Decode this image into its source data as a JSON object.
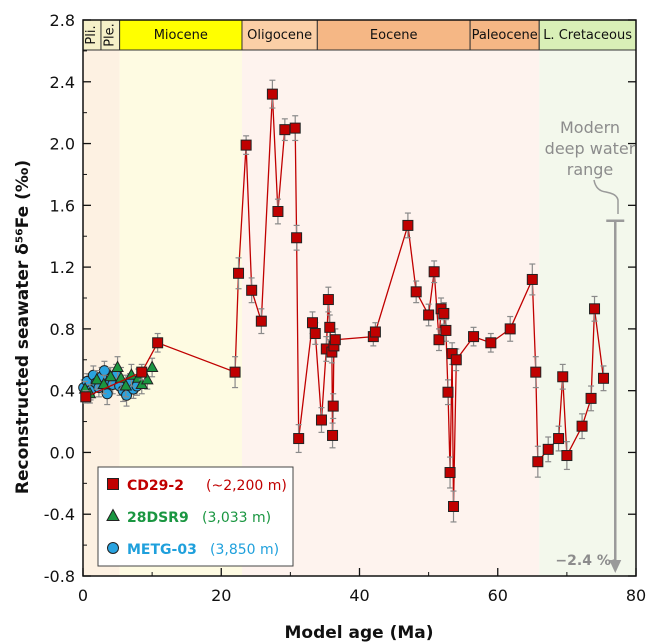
{
  "chart_data": {
    "type": "scatter",
    "xlabel": "Model age (Ma)",
    "ylabel": "Reconstructed seawater δ⁵⁶Fe (‰)",
    "xlim": [
      0,
      80
    ],
    "ylim": [
      -0.8,
      2.8
    ],
    "x_ticks": [
      "0",
      "20",
      "40",
      "60",
      "80"
    ],
    "y_ticks": [
      "-0.8",
      "-0.4",
      "0.0",
      "0.4",
      "0.8",
      "1.2",
      "1.6",
      "2.0",
      "2.4",
      "2.8"
    ],
    "epochs": [
      {
        "label": "Pli.",
        "start": 0,
        "end": 2.6,
        "color": "#f5f0c8"
      },
      {
        "label": "Ple.",
        "start": 2.6,
        "end": 5.3,
        "color": "#f5f0c8"
      },
      {
        "label": "Miocene",
        "start": 5.3,
        "end": 23.0,
        "color": "#ffff00"
      },
      {
        "label": "Oligocene",
        "start": 23.0,
        "end": 33.9,
        "color": "#fbcfa6"
      },
      {
        "label": "Eocene",
        "start": 33.9,
        "end": 56.0,
        "color": "#f5b785"
      },
      {
        "label": "Paleocene",
        "start": 56.0,
        "end": 66.0,
        "color": "#f5b785"
      },
      {
        "label": "L. Cretaceous",
        "start": 66.0,
        "end": 80.0,
        "color": "#d9efb7"
      }
    ],
    "background_bands": [
      {
        "start": 0,
        "end": 5.3,
        "color": "#fdf1e2"
      },
      {
        "start": 5.3,
        "end": 23.0,
        "color": "#fefbe2"
      },
      {
        "start": 23.0,
        "end": 66.0,
        "color": "#fef3ee"
      },
      {
        "start": 66.0,
        "end": 80.0,
        "color": "#f3f8ec"
      }
    ],
    "annotation": {
      "text_lines": [
        "Modern",
        "deep water",
        "range"
      ],
      "range_top": 1.5,
      "range_bottom_label": "−2.4 ‰",
      "x": 77
    },
    "legend_position": "bottom-left",
    "series": [
      {
        "name": "CD29-2",
        "depth_label": "(~2,200 m)",
        "marker": "square",
        "color": "#c00000",
        "label_color": "#c00000",
        "connected": true,
        "points": [
          [
            0.4,
            0.36,
            0.04
          ],
          [
            8.5,
            0.52,
            0.05
          ],
          [
            10.8,
            0.71,
            0.06
          ],
          [
            22,
            0.52,
            0.1
          ],
          [
            22.5,
            1.16,
            0.1
          ],
          [
            23.6,
            1.99,
            0.06
          ],
          [
            24.4,
            1.05,
            0.08
          ],
          [
            25.8,
            0.85,
            0.08
          ],
          [
            27.4,
            2.32,
            0.09
          ],
          [
            28.2,
            1.56,
            0.08
          ],
          [
            29.2,
            2.09,
            0.07
          ],
          [
            30.7,
            2.1,
            0.08
          ],
          [
            30.9,
            1.39,
            0.08
          ],
          [
            31.2,
            0.09,
            0.09
          ],
          [
            33.2,
            0.84,
            0.07
          ],
          [
            33.6,
            0.77,
            0.07
          ],
          [
            34.5,
            0.21,
            0.08
          ],
          [
            35.2,
            0.67,
            0.08
          ],
          [
            35.5,
            0.99,
            0.08
          ],
          [
            35.7,
            0.81,
            0.08
          ],
          [
            36.0,
            0.65,
            0.07
          ],
          [
            36.1,
            0.11,
            0.08
          ],
          [
            36.2,
            0.3,
            0.08
          ],
          [
            36.3,
            0.69,
            0.07
          ],
          [
            36.5,
            0.73,
            0.07
          ],
          [
            42,
            0.75,
            0.06
          ],
          [
            42.3,
            0.78,
            0.06
          ],
          [
            47,
            1.47,
            0.08
          ],
          [
            48.2,
            1.04,
            0.07
          ],
          [
            50,
            0.89,
            0.07
          ],
          [
            50.8,
            1.17,
            0.07
          ],
          [
            51.5,
            0.73,
            0.07
          ],
          [
            51.8,
            0.93,
            0.07
          ],
          [
            52.2,
            0.9,
            0.07
          ],
          [
            52.5,
            0.79,
            0.07
          ],
          [
            52.8,
            0.39,
            0.08
          ],
          [
            53.1,
            -0.13,
            0.1
          ],
          [
            53.4,
            0.64,
            0.07
          ],
          [
            53.6,
            -0.35,
            0.1
          ],
          [
            54.0,
            0.6,
            0.07
          ],
          [
            56.5,
            0.75,
            0.06
          ],
          [
            59,
            0.71,
            0.06
          ],
          [
            61.8,
            0.8,
            0.08
          ],
          [
            65,
            1.12,
            0.1
          ],
          [
            65.5,
            0.52,
            0.1
          ],
          [
            65.8,
            -0.06,
            0.1
          ],
          [
            67.3,
            0.02,
            0.08
          ],
          [
            68.8,
            0.09,
            0.08
          ],
          [
            69.4,
            0.49,
            0.08
          ],
          [
            70,
            -0.02,
            0.09
          ],
          [
            72.2,
            0.17,
            0.08
          ],
          [
            73.5,
            0.35,
            0.08
          ],
          [
            74.0,
            0.93,
            0.08
          ],
          [
            75.3,
            0.48,
            0.08
          ]
        ]
      },
      {
        "name": "28DSR9",
        "depth_label": "(3,033 m)",
        "marker": "triangle",
        "color": "#1a9641",
        "label_color": "#1a9641",
        "connected": false,
        "points": [
          [
            0.3,
            0.41,
            0.05
          ],
          [
            1.0,
            0.38,
            0.06
          ],
          [
            2.0,
            0.47,
            0.06
          ],
          [
            3.0,
            0.44,
            0.06
          ],
          [
            4.0,
            0.49,
            0.06
          ],
          [
            5.0,
            0.55,
            0.07
          ],
          [
            5.5,
            0.48,
            0.07
          ],
          [
            6.2,
            0.43,
            0.07
          ],
          [
            7.0,
            0.5,
            0.07
          ],
          [
            8.0,
            0.48,
            0.06
          ],
          [
            8.5,
            0.44,
            0.06
          ],
          [
            9.3,
            0.47,
            0.06
          ],
          [
            10.0,
            0.55,
            0.06
          ]
        ]
      },
      {
        "name": "METG-03",
        "depth_label": "(3,850 m)",
        "marker": "circle",
        "color": "#29a3e0",
        "label_color": "#1fa0dc",
        "connected": false,
        "points": [
          [
            0.1,
            0.42,
            0.05
          ],
          [
            0.6,
            0.46,
            0.05
          ],
          [
            1.1,
            0.4,
            0.06
          ],
          [
            1.5,
            0.5,
            0.06
          ],
          [
            1.9,
            0.45,
            0.05
          ],
          [
            2.3,
            0.42,
            0.06
          ],
          [
            2.7,
            0.49,
            0.06
          ],
          [
            3.1,
            0.53,
            0.06
          ],
          [
            3.5,
            0.38,
            0.07
          ],
          [
            3.9,
            0.46,
            0.06
          ],
          [
            4.3,
            0.44,
            0.06
          ],
          [
            4.8,
            0.5,
            0.07
          ],
          [
            5.3,
            0.43,
            0.06
          ],
          [
            5.8,
            0.4,
            0.07
          ],
          [
            6.3,
            0.37,
            0.07
          ],
          [
            6.8,
            0.45,
            0.06
          ],
          [
            7.3,
            0.41,
            0.06
          ],
          [
            7.8,
            0.43,
            0.06
          ]
        ]
      }
    ]
  }
}
